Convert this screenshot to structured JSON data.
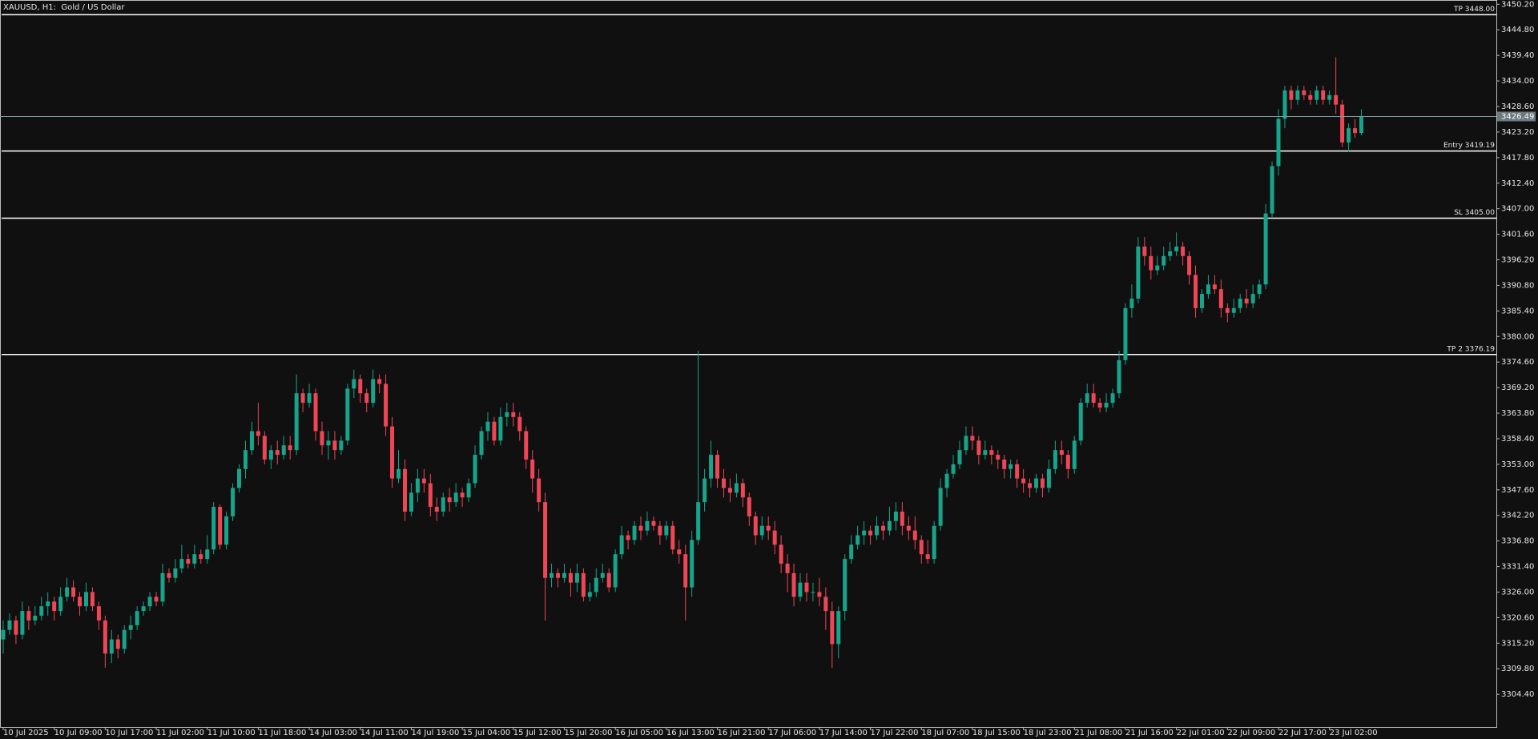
{
  "chart_data": {
    "type": "candlestick",
    "title": "XAUUSD, H1:  Gold / US Dollar",
    "categories": [
      "10 Jul 2025",
      null,
      null,
      null,
      null,
      null,
      null,
      null,
      "10 Jul 09:00",
      null,
      null,
      null,
      null,
      null,
      null,
      null,
      "10 Jul 17:00",
      null,
      null,
      null,
      null,
      null,
      null,
      null,
      "11 Jul 02:00",
      null,
      null,
      null,
      null,
      null,
      null,
      null,
      "11 Jul 10:00",
      null,
      null,
      null,
      null,
      null,
      null,
      null,
      "11 Jul 18:00",
      null,
      null,
      null,
      null,
      null,
      null,
      null,
      "14 Jul 03:00",
      null,
      null,
      null,
      null,
      null,
      null,
      null,
      "14 Jul 11:00",
      null,
      null,
      null,
      null,
      null,
      null,
      null,
      "14 Jul 19:00",
      null,
      null,
      null,
      null,
      null,
      null,
      null,
      "15 Jul 04:00",
      null,
      null,
      null,
      null,
      null,
      null,
      null,
      "15 Jul 12:00",
      null,
      null,
      null,
      null,
      null,
      null,
      null,
      "15 Jul 20:00",
      null,
      null,
      null,
      null,
      null,
      null,
      null,
      "16 Jul 05:00",
      null,
      null,
      null,
      null,
      null,
      null,
      null,
      "16 Jul 13:00",
      null,
      null,
      null,
      null,
      null,
      null,
      null,
      "16 Jul 21:00",
      null,
      null,
      null,
      null,
      null,
      null,
      null,
      "17 Jul 06:00",
      null,
      null,
      null,
      null,
      null,
      null,
      null,
      "17 Jul 14:00",
      null,
      null,
      null,
      null,
      null,
      null,
      null,
      "17 Jul 22:00",
      null,
      null,
      null,
      null,
      null,
      null,
      null,
      "18 Jul 07:00",
      null,
      null,
      null,
      null,
      null,
      null,
      null,
      "18 Jul 15:00",
      null,
      null,
      null,
      null,
      null,
      null,
      null,
      "18 Jul 23:00",
      null,
      null,
      null,
      null,
      null,
      null,
      null,
      "21 Jul 08:00",
      null,
      null,
      null,
      null,
      null,
      null,
      null,
      "21 Jul 16:00",
      null,
      null,
      null,
      null,
      null,
      null,
      null,
      "22 Jul 01:00",
      null,
      null,
      null,
      null,
      null,
      null,
      null,
      "22 Jul 09:00",
      null,
      null,
      null,
      null,
      null,
      null,
      null,
      "22 Jul 17:00",
      null,
      null,
      null,
      null,
      null,
      null,
      null,
      "23 Jul 02:00",
      null,
      null,
      null,
      null,
      null
    ],
    "open": [
      3316,
      3318,
      3320,
      3317,
      3322,
      3320,
      3321,
      3323,
      3324,
      3322,
      3325,
      3327,
      3325,
      3323,
      3326,
      3323,
      3320,
      3313,
      3316,
      3314,
      3318,
      3319,
      3322,
      3323,
      3325,
      3324,
      3330,
      3329,
      3331,
      3333,
      3332,
      3334,
      3333,
      3335,
      3344,
      3336,
      3342,
      3348,
      3352,
      3356,
      3360,
      3359,
      3354,
      3356,
      3355,
      3357,
      3356,
      3368,
      3366,
      3368,
      3360,
      3357,
      3358,
      3356,
      3358,
      3369,
      3371,
      3368,
      3366,
      3371,
      3370,
      3361,
      3350,
      3352,
      3343,
      3347,
      3350,
      3349,
      3344,
      3343,
      3346,
      3345,
      3347,
      3346,
      3349,
      3355,
      3360,
      3362,
      3358,
      3363,
      3364,
      3363,
      3360,
      3354,
      3350,
      3345,
      3329,
      3330,
      3329,
      3330,
      3328,
      3330,
      3325,
      3326,
      3329,
      3330,
      3327,
      3334,
      3338,
      3337,
      3340,
      3339,
      3341,
      3340,
      3338,
      3340,
      3335,
      3334,
      3327,
      3337,
      3345,
      3350,
      3355,
      3350,
      3348,
      3347,
      3349,
      3346,
      3342,
      3338,
      3340,
      3339,
      3336,
      3332,
      3330,
      3325,
      3328,
      3326,
      3326,
      3325,
      3322,
      3315,
      3322,
      3333,
      3336,
      3338,
      3339,
      3338,
      3340,
      3339,
      3341,
      3343,
      3340,
      3339,
      3337,
      3334,
      3333,
      3340,
      3348,
      3351,
      3353,
      3356,
      3359,
      3358,
      3355,
      3356,
      3355,
      3354,
      3352,
      3353,
      3350,
      3349,
      3348,
      3350,
      3348,
      3352,
      3356,
      3355,
      3352,
      3358,
      3366,
      3368,
      3366,
      3365,
      3366,
      3368,
      3375,
      3386,
      3388,
      3399,
      3397,
      3394,
      3395,
      3397,
      3398,
      3399,
      3397,
      3393,
      3386,
      3389,
      3391,
      3390,
      3386,
      3385,
      3386,
      3388,
      3387,
      3389,
      3391,
      3406,
      3416,
      3426,
      3432,
      3430,
      3432,
      3431,
      3430,
      3432,
      3430,
      3431,
      3429,
      3421,
      3424,
      3423
    ],
    "high": [
      3320,
      3321.5,
      3321,
      3324,
      3323,
      3323,
      3325,
      3326,
      3325,
      3327,
      3329,
      3328.5,
      3326,
      3328,
      3327,
      3324,
      3321,
      3318,
      3317,
      3319,
      3321,
      3323,
      3324,
      3326,
      3326,
      3332,
      3331,
      3333,
      3336,
      3334,
      3336,
      3335,
      3338,
      3345,
      3344.5,
      3343,
      3349,
      3353,
      3358,
      3362,
      3366,
      3360,
      3357,
      3358,
      3359,
      3359,
      3372,
      3369,
      3370,
      3369,
      3362,
      3360,
      3360,
      3359,
      3370,
      3373,
      3372,
      3369,
      3373,
      3372,
      3372,
      3363,
      3356,
      3354,
      3349,
      3352,
      3352,
      3351,
      3346,
      3347,
      3348,
      3349,
      3348,
      3350,
      3357,
      3361,
      3364,
      3363,
      3365,
      3366,
      3366,
      3364,
      3361,
      3356,
      3352,
      3347,
      3332,
      3331,
      3332,
      3331,
      3332,
      3331,
      3328,
      3331,
      3332,
      3331,
      3335,
      3340,
      3339,
      3341,
      3342,
      3343,
      3342,
      3341,
      3341,
      3341,
      3337,
      3336,
      3339,
      3377,
      3352,
      3358,
      3356,
      3352,
      3350,
      3351,
      3350,
      3347,
      3343,
      3342,
      3342,
      3341,
      3338,
      3334,
      3332,
      3330,
      3330,
      3328,
      3329,
      3327,
      3324,
      3323,
      3334,
      3338,
      3340,
      3341,
      3340,
      3342,
      3341,
      3344,
      3345,
      3345,
      3342,
      3342,
      3338,
      3337,
      3341,
      3350,
      3352,
      3355,
      3358,
      3361,
      3361,
      3359,
      3358,
      3357,
      3356,
      3355,
      3354,
      3354,
      3352,
      3350,
      3351,
      3351,
      3354,
      3358,
      3358,
      3356,
      3359,
      3367,
      3370,
      3370,
      3367,
      3368,
      3369,
      3377,
      3387,
      3391,
      3401,
      3401,
      3399,
      3397,
      3399,
      3400,
      3402,
      3400,
      3398,
      3395,
      3390,
      3393,
      3393,
      3392,
      3387,
      3388,
      3389,
      3390,
      3391,
      3392,
      3408,
      3417,
      3428,
      3433,
      3433,
      3433,
      3433,
      3432,
      3433,
      3433,
      3432,
      3439,
      3430,
      3425,
      3426,
      3428
    ],
    "low": [
      3313,
      3317,
      3315,
      3316,
      3318,
      3319,
      3320,
      3321,
      3320,
      3321,
      3324,
      3324,
      3321,
      3322,
      3322,
      3318,
      3310,
      3311,
      3312,
      3313,
      3316,
      3318,
      3321,
      3322,
      3323,
      3323,
      3328,
      3328,
      3330,
      3331,
      3331,
      3332,
      3332,
      3334,
      3335,
      3335,
      3341,
      3347,
      3350,
      3355,
      3357,
      3353,
      3352,
      3353,
      3354,
      3354,
      3355,
      3364,
      3365,
      3358,
      3355,
      3354,
      3354,
      3355,
      3357,
      3367,
      3366,
      3364,
      3365,
      3368,
      3359,
      3348,
      3349,
      3341,
      3342,
      3345,
      3347,
      3342,
      3341,
      3342,
      3343,
      3344,
      3344,
      3345,
      3348,
      3354,
      3358,
      3357,
      3357,
      3361,
      3361,
      3358,
      3352,
      3347,
      3343,
      3320,
      3327,
      3327,
      3328,
      3325,
      3326,
      3324,
      3324,
      3325,
      3328,
      3326,
      3326,
      3333,
      3335,
      3336,
      3337,
      3338,
      3339,
      3336,
      3337,
      3334,
      3332,
      3320,
      3325,
      3336,
      3343,
      3348,
      3348,
      3346,
      3345,
      3346,
      3344,
      3340,
      3336,
      3337,
      3337,
      3334,
      3330,
      3326,
      3323,
      3324,
      3324,
      3324,
      3323,
      3318,
      3310,
      3312,
      3320,
      3332,
      3335,
      3336,
      3336,
      3337,
      3337,
      3338,
      3339,
      3338,
      3337,
      3335,
      3332,
      3332,
      3332,
      3339,
      3346,
      3350,
      3352,
      3355,
      3356,
      3353,
      3354,
      3353,
      3352,
      3350,
      3350,
      3348,
      3347,
      3346,
      3347,
      3346,
      3347,
      3351,
      3353,
      3350,
      3351,
      3357,
      3365,
      3365,
      3364,
      3364,
      3365,
      3367,
      3374,
      3384,
      3387,
      3395,
      3392,
      3393,
      3394,
      3396,
      3397,
      3395,
      3391,
      3384,
      3385,
      3388,
      3389,
      3384,
      3383,
      3384,
      3385,
      3386,
      3386,
      3388,
      3390,
      3405,
      3414,
      3424,
      3428,
      3429,
      3430,
      3429,
      3429,
      3429,
      3429,
      3427,
      3420,
      3419,
      3422,
      3422.5
    ],
    "close": [
      3318,
      3320,
      3317,
      3322,
      3320,
      3321,
      3323,
      3324,
      3322,
      3325,
      3327,
      3325,
      3323,
      3326,
      3323,
      3320,
      3313,
      3316,
      3314,
      3318,
      3319,
      3322,
      3323,
      3325,
      3324,
      3330,
      3329,
      3331,
      3333,
      3332,
      3334,
      3333,
      3335,
      3344,
      3336,
      3342,
      3348,
      3352,
      3356,
      3360,
      3359,
      3354,
      3356,
      3355,
      3357,
      3356,
      3368,
      3366,
      3368,
      3360,
      3357,
      3358,
      3356,
      3358,
      3369,
      3371,
      3368,
      3366,
      3371,
      3370,
      3361,
      3350,
      3352,
      3343,
      3347,
      3350,
      3349,
      3344,
      3343,
      3346,
      3345,
      3347,
      3346,
      3349,
      3355,
      3360,
      3362,
      3358,
      3363,
      3364,
      3363,
      3360,
      3354,
      3350,
      3345,
      3329,
      3330,
      3329,
      3330,
      3328,
      3330,
      3325,
      3326,
      3329,
      3330,
      3327,
      3334,
      3338,
      3337,
      3340,
      3339,
      3341,
      3340,
      3338,
      3340,
      3335,
      3334,
      3327,
      3337,
      3345,
      3350,
      3355,
      3350,
      3348,
      3347,
      3349,
      3346,
      3342,
      3338,
      3340,
      3339,
      3336,
      3332,
      3330,
      3325,
      3328,
      3326,
      3326,
      3325,
      3322,
      3315,
      3322,
      3333,
      3336,
      3338,
      3339,
      3338,
      3340,
      3339,
      3341,
      3343,
      3340,
      3339,
      3337,
      3334,
      3333,
      3340,
      3348,
      3351,
      3353,
      3356,
      3359,
      3358,
      3355,
      3356,
      3355,
      3354,
      3352,
      3353,
      3350,
      3349,
      3348,
      3350,
      3348,
      3352,
      3356,
      3355,
      3352,
      3358,
      3366,
      3368,
      3366,
      3365,
      3366,
      3368,
      3375,
      3386,
      3388,
      3399,
      3397,
      3394,
      3395,
      3397,
      3398,
      3399,
      3397,
      3393,
      3386,
      3389,
      3391,
      3390,
      3386,
      3385,
      3386,
      3388,
      3387,
      3389,
      3391,
      3406,
      3416,
      3426,
      3432,
      3430,
      3432,
      3431,
      3430,
      3432,
      3430,
      3431,
      3429,
      3421,
      3424,
      3423,
      3426.49
    ],
    "up_color": "#16a58a",
    "down_color": "#ef4655",
    "ylim": [
      3298,
      3451.1
    ],
    "yticks": [
      {
        "value": 3450.2,
        "label": "3450.20"
      },
      {
        "value": 3444.8,
        "label": "3444.80"
      },
      {
        "value": 3439.4,
        "label": "3439.40"
      },
      {
        "value": 3434,
        "label": "3434.00"
      },
      {
        "value": 3428.6,
        "label": "3428.60"
      },
      {
        "value": 3423.2,
        "label": "3423.20"
      },
      {
        "value": 3417.8,
        "label": "3417.80"
      },
      {
        "value": 3412.4,
        "label": "3412.40"
      },
      {
        "value": 3407,
        "label": "3407.00"
      },
      {
        "value": 3401.6,
        "label": "3401.60"
      },
      {
        "value": 3396.2,
        "label": "3396.20"
      },
      {
        "value": 3390.8,
        "label": "3390.80"
      },
      {
        "value": 3385.4,
        "label": "3385.40"
      },
      {
        "value": 3380,
        "label": "3380.00"
      },
      {
        "value": 3374.6,
        "label": "3374.60"
      },
      {
        "value": 3369.2,
        "label": "3369.20"
      },
      {
        "value": 3363.8,
        "label": "3363.80"
      },
      {
        "value": 3358.4,
        "label": "3358.40"
      },
      {
        "value": 3353,
        "label": "3353.00"
      },
      {
        "value": 3347.6,
        "label": "3347.60"
      },
      {
        "value": 3342.2,
        "label": "3342.20"
      },
      {
        "value": 3336.8,
        "label": "3336.80"
      },
      {
        "value": 3331.4,
        "label": "3331.40"
      },
      {
        "value": 3326,
        "label": "3326.00"
      },
      {
        "value": 3320.6,
        "label": "3320.60"
      },
      {
        "value": 3315.2,
        "label": "3315.20"
      },
      {
        "value": 3309.8,
        "label": "3309.80"
      },
      {
        "value": 3304.4,
        "label": "3304.40"
      }
    ],
    "levels": [
      {
        "label": "TP 3448.00",
        "value": 3448
      },
      {
        "label": "Entry 3419.19",
        "value": 3419.19
      },
      {
        "label": "SL 3405.00",
        "value": 3405
      },
      {
        "label": "TP 2 3376.19",
        "value": 3376.19
      }
    ],
    "grid": false
  }
}
